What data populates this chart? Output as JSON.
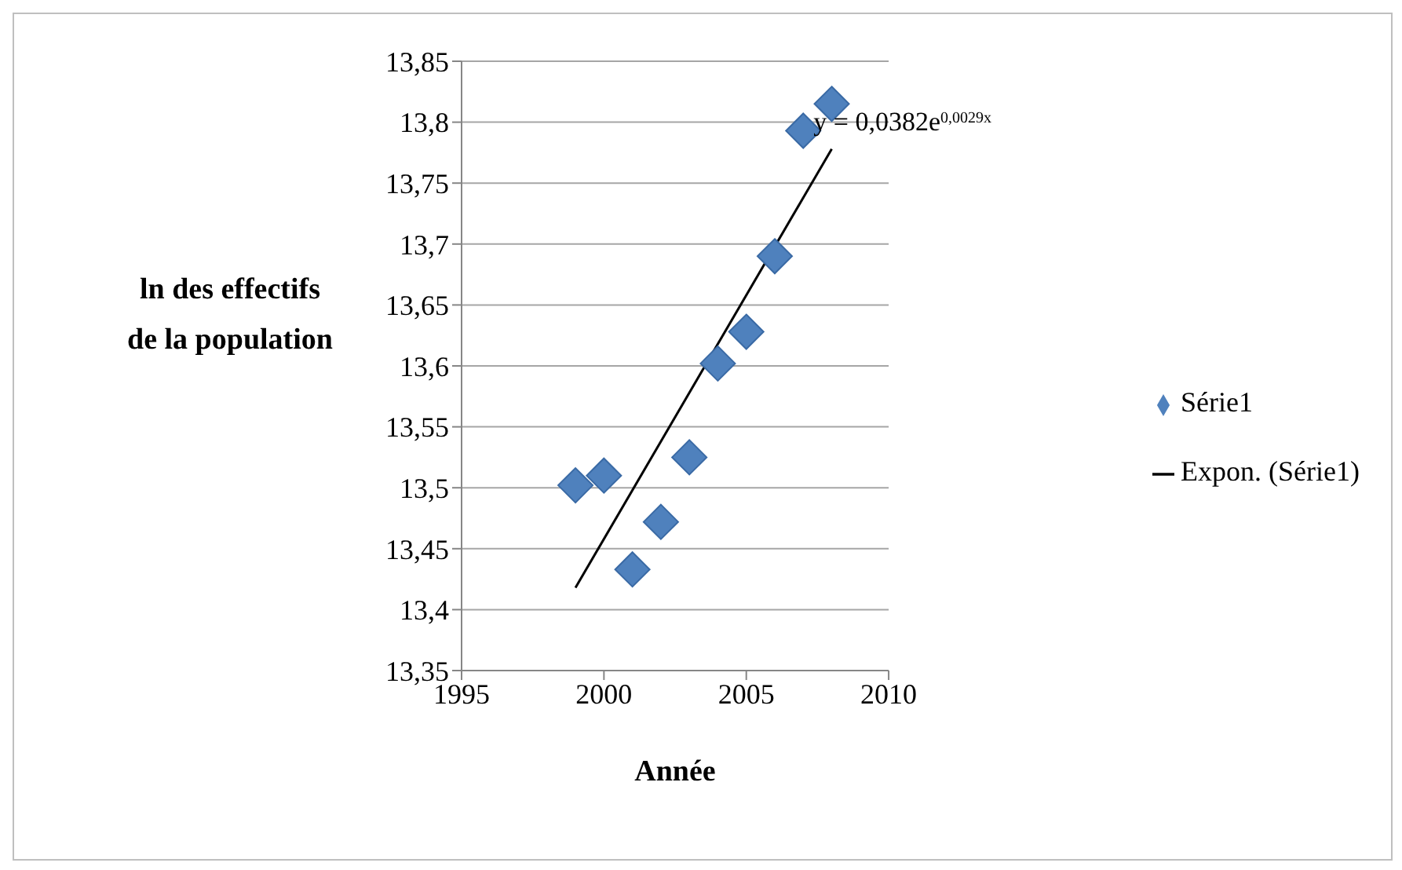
{
  "chart_data": {
    "type": "scatter",
    "xlabel": "Année",
    "ylabel": "ln des effectifs de la population",
    "annotations": [
      "y = 0,0382e$^{0,0029x}$"
    ],
    "series": [
      {
        "name": "Série1",
        "color": "#4f81bd",
        "marker": "diamond",
        "x": [
          1999,
          2000,
          2001,
          2002,
          2003,
          2004,
          2005,
          2006,
          2007,
          2008
        ],
        "values": [
          13.502,
          13.51,
          13.433,
          13.472,
          13.525,
          13.602,
          13.628,
          13.69,
          13.793,
          13.815
        ]
      },
      {
        "name": "Expon. (Série1)",
        "type": "line",
        "color": "#000000",
        "marker": "none",
        "x": [
          1999,
          2008
        ],
        "values": [
          13.418,
          13.778
        ]
      }
    ],
    "xlim": [
      1995,
      2010
    ],
    "xticks": [
      1995,
      2000,
      2005,
      2010
    ],
    "ylim": [
      13.35,
      13.85
    ],
    "yticks": [
      {
        "value": 13.35,
        "label": "13,35"
      },
      {
        "value": 13.4,
        "label": "13,4"
      },
      {
        "value": 13.45,
        "label": "13,45"
      },
      {
        "value": 13.5,
        "label": "13,5"
      },
      {
        "value": 13.55,
        "label": "13,55"
      },
      {
        "value": 13.6,
        "label": "13,6"
      },
      {
        "value": 13.65,
        "label": "13,65"
      },
      {
        "value": 13.7,
        "label": "13,7"
      },
      {
        "value": 13.75,
        "label": "13,75"
      },
      {
        "value": 13.8,
        "label": "13,8"
      },
      {
        "value": 13.85,
        "label": "13,85"
      }
    ],
    "grid": "y",
    "legend": "right"
  }
}
